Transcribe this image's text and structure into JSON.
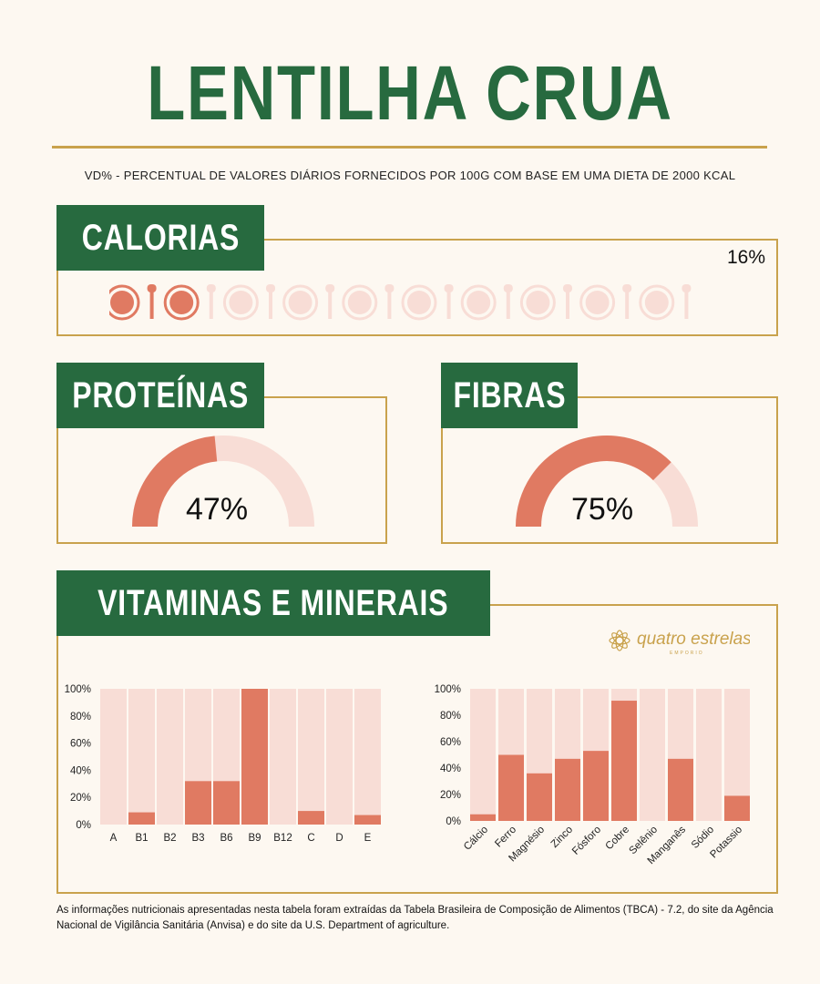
{
  "title": "LENTILHA CRUA",
  "subtitle": "VD% - PERCENTUAL DE VALORES DIÁRIOS FORNECIDOS POR 100G COM BASE EM UMA DIETA DE 2000 KCAL",
  "calorias": {
    "label": "CALORIAS",
    "pct_text": "16%",
    "value": 16,
    "icons_total": 20,
    "icons_filled": 3
  },
  "proteinas": {
    "label": "PROTEÍNAS",
    "pct_text": "47%",
    "value": 47
  },
  "fibras": {
    "label": "FIBRAS",
    "pct_text": "75%",
    "value": 75
  },
  "vitaminas": {
    "label": "VITAMINAS E MINERAIS"
  },
  "logo": {
    "text": "quatro estrelas",
    "subtext": "EMPORIO"
  },
  "colors": {
    "green": "#276a3f",
    "gold": "#c9a24d",
    "coral": "#e07a62",
    "pale": "#f8ddd6",
    "background": "#fdf8f1"
  },
  "chart_data": [
    {
      "type": "bar",
      "title": "Vitaminas",
      "categories": [
        "A",
        "B1",
        "B2",
        "B3",
        "B6",
        "B9",
        "B12",
        "C",
        "D",
        "E"
      ],
      "values": [
        0,
        9,
        0,
        32,
        32,
        100,
        0,
        10,
        0,
        7
      ],
      "ylim": [
        0,
        100
      ],
      "yticks": [
        "0%",
        "20%",
        "40%",
        "60%",
        "80%",
        "100%"
      ]
    },
    {
      "type": "bar",
      "title": "Minerais",
      "categories": [
        "Cálcio",
        "Ferro",
        "Magnésio",
        "Zinco",
        "Fósforo",
        "Cobre",
        "Selênio",
        "Manganês",
        "Sódio",
        "Potassio"
      ],
      "values": [
        5,
        50,
        36,
        47,
        53,
        91,
        0,
        47,
        0,
        19
      ],
      "ylim": [
        0,
        100
      ],
      "yticks": [
        "0%",
        "20%",
        "40%",
        "60%",
        "80%",
        "100%"
      ]
    }
  ],
  "footer": "As informações nutricionais apresentadas nesta tabela foram extraídas da Tabela Brasileira de Composição de Alimentos (TBCA) - 7.2, do site da Agência Nacional de Vigilância Sanitária (Anvisa) e do site da U.S. Department of agriculture."
}
